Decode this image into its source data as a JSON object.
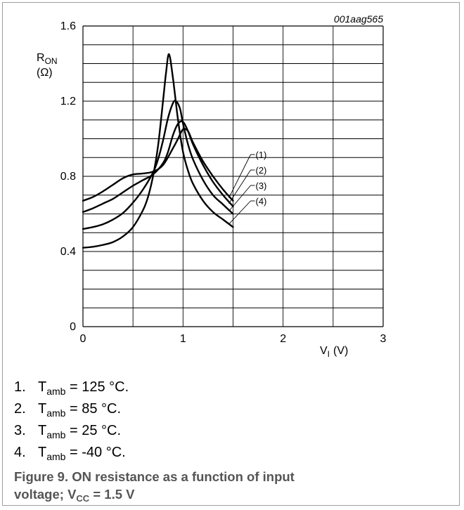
{
  "chart_data": {
    "type": "line",
    "figure_id": "001aag565",
    "ylabel_main": "R",
    "ylabel_sub": "ON",
    "ylabel_unit": "(Ω)",
    "xlabel_main": "V",
    "xlabel_sub": "I",
    "xlabel_unit": "(V)",
    "xlim": [
      0,
      3
    ],
    "ylim": [
      0,
      1.6
    ],
    "xticks": [
      0,
      1,
      2,
      3
    ],
    "xtick_labels": [
      "0",
      "1",
      "2",
      "3"
    ],
    "yticks": [
      0,
      0.4,
      0.8,
      1.2,
      1.6
    ],
    "ytick_labels": [
      "0",
      "0.4",
      "0.8",
      "1.2",
      "1.6"
    ],
    "grid": true,
    "grid_x_step": 0.5,
    "grid_y_step": 0.1,
    "series": [
      {
        "name": "(1)",
        "x": [
          0,
          0.1,
          0.2,
          0.3,
          0.4,
          0.5,
          0.6,
          0.7,
          0.8,
          0.9,
          0.95,
          1.0,
          1.05,
          1.1,
          1.2,
          1.3,
          1.4,
          1.5
        ],
        "y": [
          0.67,
          0.69,
          0.72,
          0.755,
          0.79,
          0.81,
          0.815,
          0.825,
          0.86,
          0.95,
          1.0,
          1.05,
          1.04,
          0.98,
          0.88,
          0.8,
          0.73,
          0.67
        ]
      },
      {
        "name": "(2)",
        "x": [
          0,
          0.1,
          0.2,
          0.3,
          0.4,
          0.5,
          0.6,
          0.7,
          0.8,
          0.85,
          0.9,
          0.95,
          1.0,
          1.05,
          1.1,
          1.2,
          1.3,
          1.4,
          1.5
        ],
        "y": [
          0.61,
          0.63,
          0.655,
          0.68,
          0.715,
          0.75,
          0.78,
          0.81,
          0.87,
          0.93,
          1.02,
          1.08,
          1.09,
          1.04,
          0.97,
          0.86,
          0.77,
          0.7,
          0.64
        ]
      },
      {
        "name": "(3)",
        "x": [
          0,
          0.1,
          0.2,
          0.3,
          0.4,
          0.5,
          0.6,
          0.7,
          0.75,
          0.8,
          0.85,
          0.9,
          0.93,
          0.97,
          1.0,
          1.05,
          1.1,
          1.2,
          1.3,
          1.4,
          1.5
        ],
        "y": [
          0.52,
          0.53,
          0.545,
          0.57,
          0.605,
          0.66,
          0.73,
          0.82,
          0.89,
          0.99,
          1.11,
          1.19,
          1.2,
          1.16,
          1.08,
          0.97,
          0.89,
          0.78,
          0.7,
          0.65,
          0.6
        ]
      },
      {
        "name": "(4)",
        "x": [
          0,
          0.1,
          0.2,
          0.3,
          0.4,
          0.5,
          0.6,
          0.65,
          0.7,
          0.75,
          0.8,
          0.83,
          0.86,
          0.9,
          0.95,
          1.0,
          1.05,
          1.1,
          1.2,
          1.3,
          1.4,
          1.5
        ],
        "y": [
          0.42,
          0.425,
          0.435,
          0.45,
          0.48,
          0.53,
          0.62,
          0.69,
          0.8,
          0.96,
          1.2,
          1.35,
          1.45,
          1.32,
          1.1,
          0.93,
          0.83,
          0.76,
          0.67,
          0.61,
          0.57,
          0.53
        ]
      }
    ],
    "legend_items": [
      {
        "num": "1.",
        "text_main": "T",
        "text_sub": "amb",
        "text_rest": " = 125 °C."
      },
      {
        "num": "2.",
        "text_main": "T",
        "text_sub": "amb",
        "text_rest": " = 85 °C."
      },
      {
        "num": "3.",
        "text_main": "T",
        "text_sub": "amb",
        "text_rest": " = 25 °C."
      },
      {
        "num": "4.",
        "text_main": "T",
        "text_sub": "amb",
        "text_rest": " = -40 °C."
      }
    ],
    "caption_line1": "Figure 9.  ON resistance as a function of input",
    "caption_line2_pre": "voltage; V",
    "caption_line2_sub": "CC",
    "caption_line2_post": " = 1.5 V",
    "colors": {
      "line": "#000000",
      "grid": "#000000",
      "caption": "#555555",
      "frame": "#9e9e9e"
    }
  }
}
